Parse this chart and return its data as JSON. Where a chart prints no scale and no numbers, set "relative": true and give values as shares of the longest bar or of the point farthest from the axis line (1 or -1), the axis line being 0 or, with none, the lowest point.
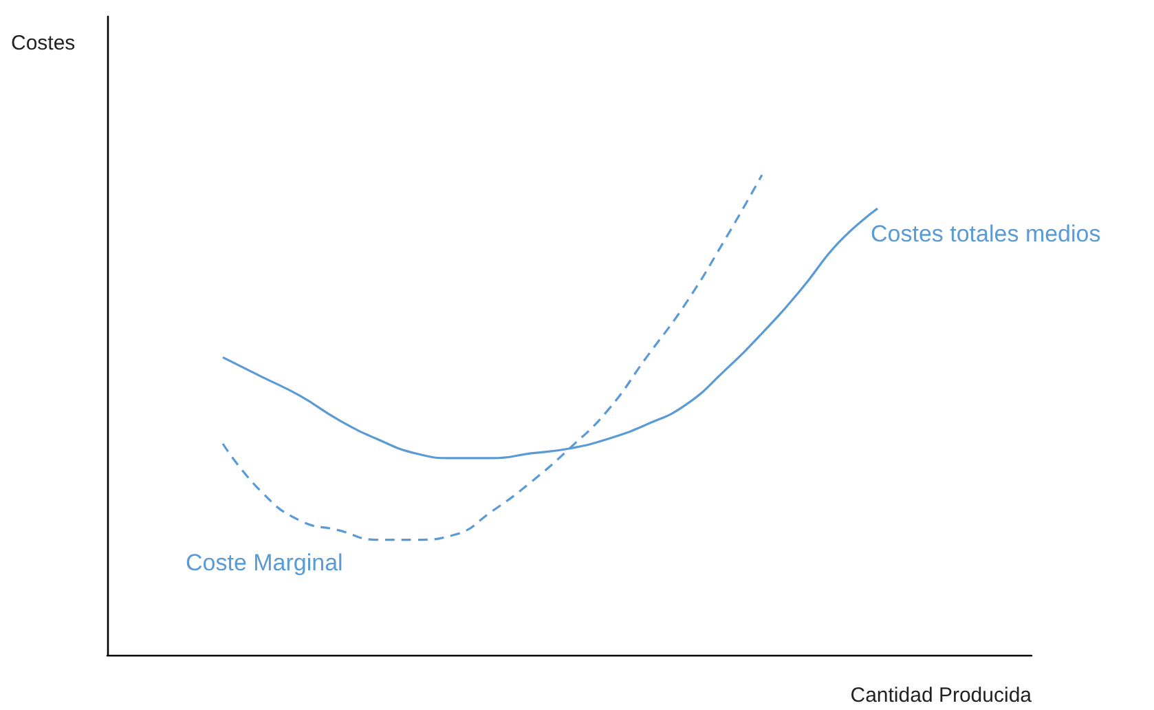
{
  "chart_data": {
    "type": "line",
    "relative": true,
    "xlabel": "Cantidad Producida",
    "annotations": [
      "Costes"
    ],
    "legend": false,
    "grid": false,
    "marker": "none",
    "tick_labels": false,
    "categories": [
      null,
      null,
      null,
      null,
      null,
      null,
      null,
      null,
      null,
      null,
      null,
      null,
      null,
      null,
      null,
      null,
      null,
      null,
      null,
      null,
      null,
      null,
      null,
      null,
      null
    ],
    "series": [
      {
        "name": "Costes totales medios",
        "color": "#5b9bd5",
        "line_style": "solid",
        "values": [
          null,
          null,
          null,
          0.62,
          0.58,
          0.54,
          0.49,
          0.45,
          0.42,
          0.41,
          0.41,
          0.42,
          0.43,
          0.45,
          0.48,
          0.52,
          0.59,
          0.67,
          0.76,
          0.86,
          0.93,
          null,
          null,
          null,
          null
        ]
      },
      {
        "name": "Coste Marginal",
        "color": "#5b9bd5",
        "line_style": "dashed",
        "values": [
          null,
          null,
          null,
          0.44,
          0.34,
          0.28,
          0.26,
          0.24,
          0.24,
          0.25,
          0.3,
          0.36,
          0.43,
          0.51,
          0.62,
          0.73,
          0.86,
          1.0,
          null,
          null,
          null,
          null,
          null,
          null,
          null
        ]
      }
    ]
  }
}
